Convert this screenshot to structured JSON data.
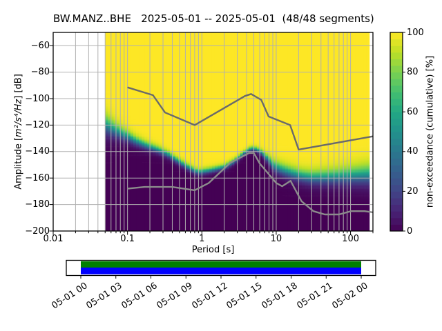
{
  "figure": {
    "background": "#ffffff",
    "spine_color": "#000000"
  },
  "chart_data": {
    "type": "heatmap",
    "title": "BW.MANZ..BHE   2025-05-01 -- 2025-05-01  (48/48 segments)",
    "xlabel": "Period [s]",
    "ylabel": {
      "prefix": "Amplitude [",
      "math": "m²/s⁴/Hz",
      "suffix": "] [dB]"
    },
    "x_scale": "log",
    "xlim": [
      0.01,
      200
    ],
    "ylim": [
      -200,
      -50
    ],
    "x_ticks": [
      {
        "v": 0.01,
        "label": "0.01"
      },
      {
        "v": 0.1,
        "label": "0.1"
      },
      {
        "v": 1,
        "label": "1"
      },
      {
        "v": 10,
        "label": "10"
      },
      {
        "v": 100,
        "label": "100"
      }
    ],
    "y_ticks": [
      {
        "v": -60,
        "label": "−60"
      },
      {
        "v": -80,
        "label": "−80"
      },
      {
        "v": -100,
        "label": "−100"
      },
      {
        "v": -120,
        "label": "−120"
      },
      {
        "v": -140,
        "label": "−140"
      },
      {
        "v": -160,
        "label": "−160"
      },
      {
        "v": -180,
        "label": "−180"
      },
      {
        "v": -200,
        "label": "−200"
      }
    ],
    "grid": {
      "color": "#b0b0b0",
      "minor_x_gridlines": true
    },
    "histogram": {
      "period_range": [
        0.05,
        179
      ],
      "columns_per_octave": 8,
      "db_bin_width": 1,
      "distribution_points": [
        [
          0.05,
          -119.5,
          9.5
        ],
        [
          0.065,
          -123.0,
          7.5
        ],
        [
          0.08,
          -125.8,
          6.2
        ],
        [
          0.1,
          -128.3,
          5.2
        ],
        [
          0.13,
          -132.0,
          4.4
        ],
        [
          0.18,
          -135.3,
          3.8
        ],
        [
          0.26,
          -138.6,
          3.4
        ],
        [
          0.35,
          -142.0,
          3.2
        ],
        [
          0.45,
          -146.0,
          3.0
        ],
        [
          0.6,
          -150.5,
          3.0
        ],
        [
          0.75,
          -153.5,
          3.0
        ],
        [
          0.9,
          -155.5,
          2.9
        ],
        [
          1.3,
          -154.0,
          2.8
        ],
        [
          2.0,
          -151.5,
          2.6
        ],
        [
          2.6,
          -148.0,
          2.5
        ],
        [
          3.2,
          -144.0,
          2.3
        ],
        [
          3.8,
          -140.5,
          2.2
        ],
        [
          4.3,
          -138.3,
          2.2
        ],
        [
          4.8,
          -137.6,
          2.2
        ],
        [
          5.5,
          -138.3,
          2.4
        ],
        [
          6.5,
          -141.0,
          2.8
        ],
        [
          8.0,
          -146.5,
          4.0
        ],
        [
          9.0,
          -150.0,
          5.0
        ],
        [
          10.0,
          -151.5,
          5.5
        ],
        [
          12.0,
          -153.5,
          5.8
        ],
        [
          16.0,
          -156.0,
          6.0
        ],
        [
          22.0,
          -158.3,
          6.2
        ],
        [
          30.0,
          -159.5,
          6.5
        ],
        [
          45.0,
          -159.3,
          7.0
        ],
        [
          70.0,
          -158.7,
          7.5
        ],
        [
          110.0,
          -158.0,
          8.5
        ],
        [
          179.0,
          -157.3,
          9.5
        ]
      ]
    },
    "noise_models": {
      "high_color": "#6a6a6a",
      "low_color": "#8c8c8c",
      "line_width": 2.4,
      "nhnm": [
        [
          0.1,
          -91.5
        ],
        [
          0.22,
          -97.4
        ],
        [
          0.32,
          -110.5
        ],
        [
          0.8,
          -120.0
        ],
        [
          3.8,
          -98.0
        ],
        [
          4.6,
          -96.5
        ],
        [
          6.3,
          -101.0
        ],
        [
          7.9,
          -113.5
        ],
        [
          15.4,
          -120.0
        ],
        [
          20,
          -138.5
        ],
        [
          200,
          -128.5
        ]
      ],
      "nlnm": [
        [
          0.1,
          -168.0
        ],
        [
          0.17,
          -166.7
        ],
        [
          0.4,
          -166.7
        ],
        [
          0.8,
          -169.2
        ],
        [
          1.24,
          -163.7
        ],
        [
          2.4,
          -148.6
        ],
        [
          4.3,
          -141.1
        ],
        [
          5,
          -141.1
        ],
        [
          6,
          -149.0
        ],
        [
          10,
          -163.7
        ],
        [
          12,
          -166.2
        ],
        [
          15.6,
          -162.1
        ],
        [
          21.9,
          -177.5
        ],
        [
          31.6,
          -185.0
        ],
        [
          45,
          -187.5
        ],
        [
          70,
          -187.5
        ],
        [
          101.7,
          -185.0
        ],
        [
          154.8,
          -185.0
        ],
        [
          200,
          -185.9
        ]
      ]
    },
    "colorbar": {
      "label": "non-exceedance (cumulative) [%]",
      "ticks": [
        {
          "v": 0,
          "label": "0"
        },
        {
          "v": 20,
          "label": "20"
        },
        {
          "v": 40,
          "label": "40"
        },
        {
          "v": 60,
          "label": "60"
        },
        {
          "v": 80,
          "label": "80"
        },
        {
          "v": 100,
          "label": "100"
        }
      ],
      "steps": 30,
      "viridis": [
        "#440154",
        "#482475",
        "#414487",
        "#355f8d",
        "#2a788e",
        "#21918c",
        "#22a884",
        "#44bf70",
        "#7ad151",
        "#bddf26",
        "#fde725"
      ]
    }
  },
  "timeline": {
    "tick_labels": [
      "05-01 00",
      "05-01 03",
      "05-01 06",
      "05-01 09",
      "05-01 12",
      "05-01 15",
      "05-01 18",
      "05-01 21",
      "05-02 00"
    ],
    "coverage_color": "#008000",
    "segments_color": "#0000ff",
    "box_color": "#ffffff"
  }
}
